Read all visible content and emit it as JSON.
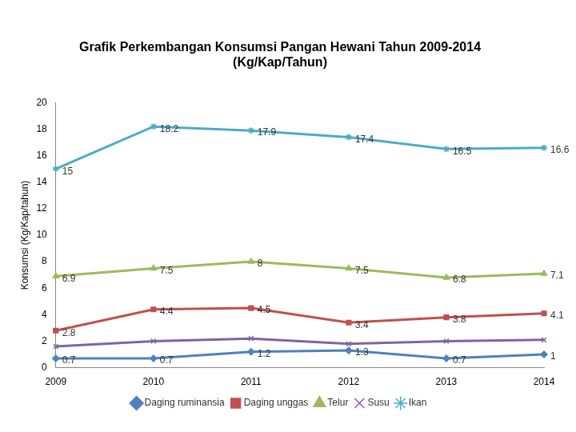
{
  "chart_data": {
    "type": "line",
    "title": [
      "Grafik Perkembangan Konsumsi Pangan Hewani Tahun 2009-2014",
      "(Kg/Kap/Tahun)"
    ],
    "y_label": "Konsumsi (Kg/Kap/tahun)",
    "categories": [
      "2009",
      "2010",
      "2011",
      "2012",
      "2013",
      "2014"
    ],
    "series": [
      {
        "name": "Daging ruminansia",
        "color": "#4f81bd",
        "marker": "diamond",
        "data_labels": true,
        "values": [
          0.7,
          0.7,
          1.2,
          1.3,
          0.7,
          1
        ]
      },
      {
        "name": "Daging unggas",
        "color": "#c0504d",
        "marker": "square",
        "data_labels": true,
        "values": [
          2.8,
          4.4,
          4.5,
          3.4,
          3.8,
          4.1
        ]
      },
      {
        "name": "Telur",
        "color": "#9bbb59",
        "marker": "triangle",
        "data_labels": true,
        "values": [
          6.9,
          7.5,
          8,
          7.5,
          6.8,
          7.1
        ]
      },
      {
        "name": "Susu",
        "color": "#8064a2",
        "marker": "x",
        "values": [
          1.6,
          2.0,
          2.2,
          1.8,
          2.0,
          2.1
        ]
      },
      {
        "name": "Ikan",
        "color": "#4bacc6",
        "marker": "star",
        "data_labels": true,
        "values": [
          15,
          18.2,
          17.9,
          17.4,
          16.5,
          16.6
        ]
      }
    ],
    "ylim": [
      0,
      20
    ],
    "yticks": [
      0,
      2,
      4,
      6,
      8,
      10,
      12,
      14,
      16,
      18,
      20
    ],
    "grid": false,
    "legend": "bottom"
  }
}
